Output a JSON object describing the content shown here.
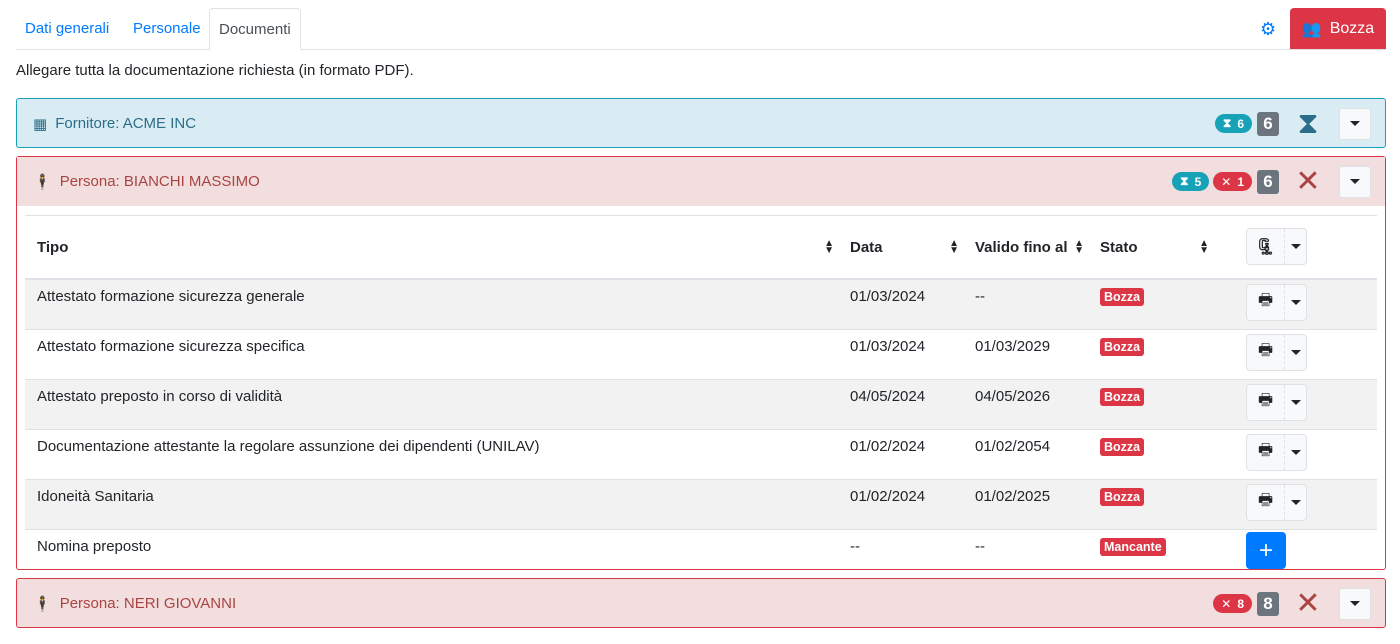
{
  "tabs": [
    {
      "label": "Dati generali"
    },
    {
      "label": "Personale"
    },
    {
      "label": "Documenti",
      "active": true
    }
  ],
  "header": {
    "settings_icon": "gear-icon",
    "status_button": "Bozza",
    "status_color": "#dc3545"
  },
  "intro": "Allegare tutta la documentazione richiesta (in formato PDF).",
  "panels": [
    {
      "title": "Fornitore: ACME INC",
      "icon": "building-icon",
      "pending": "6",
      "total": "6",
      "status_icon": "hourglass-icon"
    },
    {
      "title": "Persona: BIANCHI MASSIMO",
      "icon": "person-icon",
      "pending": "5",
      "missing": "1",
      "total": "6",
      "status_icon": "times-icon",
      "table": {
        "headers": [
          "Tipo",
          "Data",
          "Valido fino al",
          "Stato"
        ],
        "rows": [
          {
            "tipo": "Attestato formazione sicurezza generale",
            "data": "01/03/2024",
            "valido": "--",
            "stato": "Bozza"
          },
          {
            "tipo": "Attestato formazione sicurezza specifica",
            "data": "01/03/2024",
            "valido": "01/03/2029",
            "stato": "Bozza"
          },
          {
            "tipo": "Attestato preposto in corso di validità",
            "data": "04/05/2024",
            "valido": "04/05/2026",
            "stato": "Bozza"
          },
          {
            "tipo": "Documentazione attestante la regolare assunzione dei dipendenti (UNILAV)",
            "data": "01/02/2024",
            "valido": "01/02/2054",
            "stato": "Bozza"
          },
          {
            "tipo": "Idoneità Sanitaria",
            "data": "01/02/2024",
            "valido": "01/02/2025",
            "stato": "Bozza"
          },
          {
            "tipo": "Nomina preposto",
            "data": "--",
            "valido": "--",
            "stato": "Mancante"
          }
        ]
      }
    },
    {
      "title": "Persona: NERI GIOVANNI",
      "icon": "person-icon",
      "missing": "8",
      "total": "8",
      "status_icon": "times-icon"
    }
  ]
}
